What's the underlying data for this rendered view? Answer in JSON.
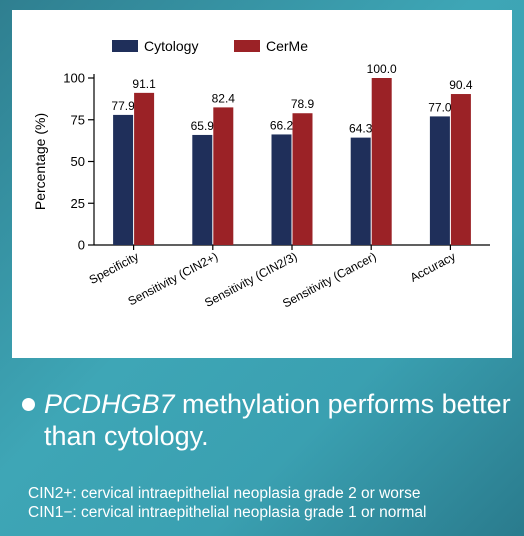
{
  "chart_data": {
    "type": "bar",
    "title": "",
    "xlabel": "",
    "ylabel": "Percentage (%)",
    "ylim": [
      0,
      100
    ],
    "yticks": [
      0,
      25,
      50,
      75,
      100
    ],
    "categories": [
      "Specificity",
      "Sensitivity (CIN2+)",
      "Sensitivity (CIN2/3)",
      "Sensitivity (Cancer)",
      "Accuracy"
    ],
    "series": [
      {
        "name": "Cytology",
        "color": "#1f2f5a",
        "values": [
          77.9,
          65.9,
          66.2,
          64.3,
          77.0
        ],
        "labels": [
          "77.9",
          "65.9",
          "66.2",
          "64.3",
          "77.0"
        ]
      },
      {
        "name": "CerMe",
        "color": "#9b2226",
        "values": [
          91.1,
          82.4,
          78.9,
          100.0,
          90.4
        ],
        "labels": [
          "91.1",
          "82.4",
          "78.9",
          "100.0",
          "90.4"
        ]
      }
    ],
    "legend_position": "top-left",
    "grid": false
  },
  "bullet": {
    "gene": "PCDHGB7",
    "rest": " methylation performs better than cytology."
  },
  "notes": {
    "line1": "CIN2+: cervical intraepithelial neoplasia grade 2 or worse",
    "line2": "CIN1−: cervical intraepithelial neoplasia grade 1 or normal"
  }
}
